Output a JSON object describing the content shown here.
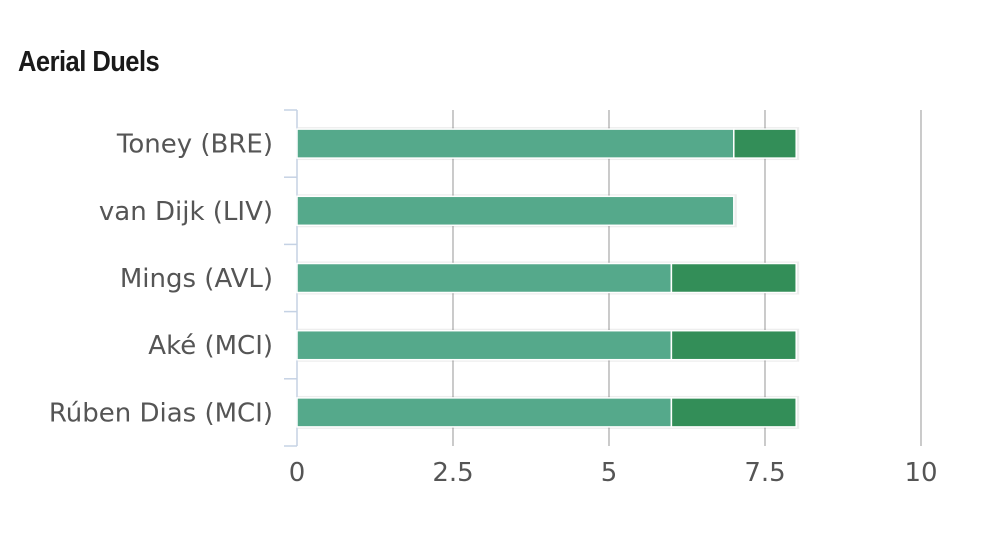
{
  "chart_data": {
    "type": "bar",
    "orientation": "horizontal",
    "stacked": true,
    "title": "Aerial Duels",
    "categories": [
      "Toney (BRE)",
      "van Dijk (LIV)",
      "Mings (AVL)",
      "Aké (MCI)",
      "Rúben Dias (MCI)"
    ],
    "series": [
      {
        "values": [
          7,
          7,
          6,
          6,
          6
        ],
        "color": "#55a98b"
      },
      {
        "values": [
          1,
          0,
          2,
          2,
          2
        ],
        "color": "#338e58"
      }
    ],
    "xlim": [
      0,
      10
    ],
    "xticks": [
      "0",
      "2.5",
      "5",
      "7.5",
      "10"
    ],
    "xtick_values": [
      0,
      2.5,
      5,
      7.5,
      10
    ],
    "grid": true,
    "legend": "none"
  }
}
